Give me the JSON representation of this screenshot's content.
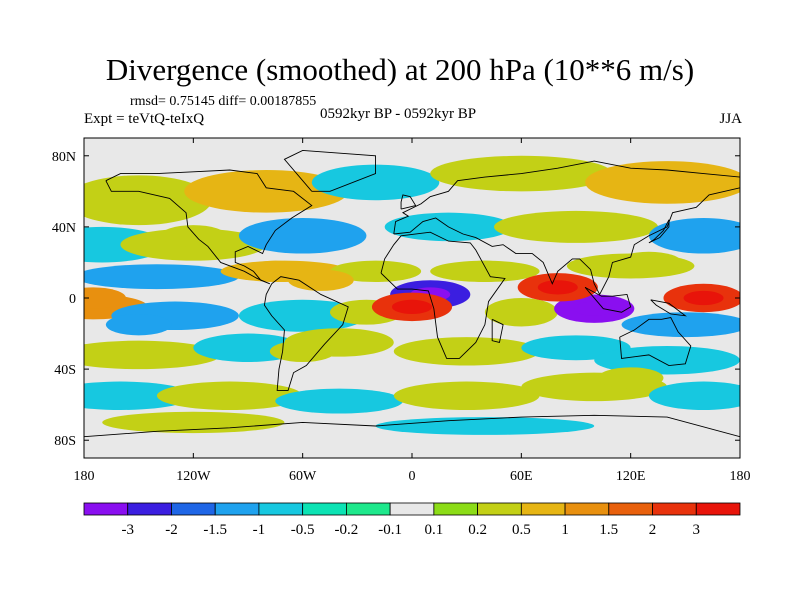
{
  "title": "Divergence (smoothed) at 200 hPa (10**6 m/s)",
  "stats": "rmsd= 0.75145 diff= 0.00187855",
  "experiment": "Expt = teVtQ-teIxQ",
  "period": "0592kyr BP - 0592kyr BP",
  "season": "JJA",
  "y_ticks": [
    "80N",
    "40N",
    "0",
    "40S",
    "80S"
  ],
  "x_ticks": [
    "180",
    "120W",
    "60W",
    "0",
    "60E",
    "120E",
    "180"
  ],
  "colorbar": {
    "labels": [
      "-3",
      "-2",
      "-1.5",
      "-1",
      "-0.5",
      "-0.2",
      "-0.1",
      "0.1",
      "0.2",
      "0.5",
      "1",
      "1.5",
      "2",
      "3"
    ],
    "colors": [
      "#8a0ff0",
      "#3b1ee0",
      "#1f66e6",
      "#1fa2ee",
      "#17c8e0",
      "#0ce3b4",
      "#1ee88c",
      "#e8e8e8",
      "#8cdc17",
      "#c3d016",
      "#e6b514",
      "#e8900f",
      "#e8600c",
      "#e8320c",
      "#e8140a"
    ]
  },
  "chart_data": {
    "type": "heatmap",
    "title": "Divergence (smoothed) at 200 hPa (10**6 m/s)",
    "units": "10**6 m/s",
    "x_range": [
      -180,
      180
    ],
    "y_range": [
      -90,
      90
    ],
    "features": [
      {
        "lon": 10,
        "lat": 2,
        "value": -2.5
      },
      {
        "lon": 0,
        "lat": -5,
        "value": 2.5
      },
      {
        "lon": 100,
        "lat": -6,
        "value": -3.0
      },
      {
        "lon": 80,
        "lat": 6,
        "value": 2.5
      },
      {
        "lon": 160,
        "lat": 0,
        "value": 3.0
      },
      {
        "lon": -175,
        "lat": 0,
        "value": 1.5
      },
      {
        "lon": -150,
        "lat": -15,
        "value": -1.0
      },
      {
        "lon": -75,
        "lat": 15,
        "value": 1.0
      },
      {
        "lon": -50,
        "lat": 10,
        "value": 1.0
      },
      {
        "lon": 40,
        "lat": 15,
        "value": 0.5
      },
      {
        "lon": 130,
        "lat": 20,
        "value": 0.5
      },
      {
        "lon": -120,
        "lat": 35,
        "value": 0.5
      },
      {
        "lon": -60,
        "lat": -30,
        "value": 0.5
      },
      {
        "lon": 120,
        "lat": -45,
        "value": 0.5
      }
    ]
  }
}
